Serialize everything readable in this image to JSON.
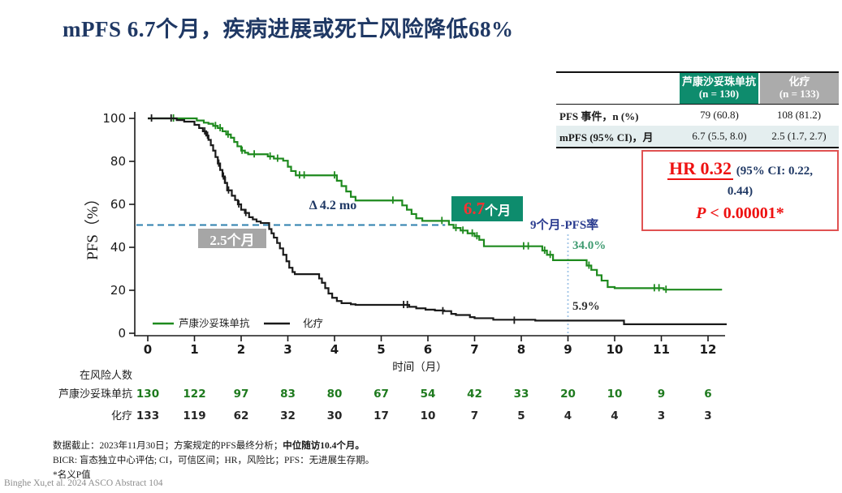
{
  "title": "mPFS 6.7个月，疾病进展或死亡风险降低68%",
  "colors": {
    "title_navy": "#1F3864",
    "sac_green": "#1E8A1E",
    "chemo_black": "#1A1A1A",
    "teal_header": "#0E8C6D",
    "gray_header": "#ABABAB",
    "light_row": "#E4EEEF",
    "red_accent": "#EE1111",
    "median_dash_blue": "#2E7FAE",
    "vline_light_blue": "#9DC3E6",
    "pfs9_green_text": "#3F9B71"
  },
  "summary_table": {
    "col_headers": [
      {
        "label": "芦康沙妥珠单抗",
        "n": "(n = 130)",
        "bg": "#0E8C6D"
      },
      {
        "label": "化疗",
        "n": "(n = 133)",
        "bg": "#ABABAB"
      }
    ],
    "rows": [
      {
        "label": "PFS 事件，n (%)",
        "values": [
          "79 (60.8)",
          "108 (81.2)"
        ],
        "bg": "#FFFFFF"
      },
      {
        "label": "mPFS (95% CI)，月",
        "values": [
          "6.7 (5.5, 8.0)",
          "2.5 (1.7, 2.7)"
        ],
        "bg": "#E4EEEF"
      }
    ]
  },
  "hr_box": {
    "hr": "HR 0.32",
    "ci_part1": " (95% CI: 0.22,",
    "ci_part2": "0.44)",
    "p_italic": "P",
    "p_rest": " < 0.00001*"
  },
  "annotations": {
    "delta": "Δ 4.2 mo",
    "median_chemo": "2.5个月",
    "median_sac_num": "6.7",
    "median_sac_unit": "个月",
    "pfs9_label": "9个月-PFS率",
    "pfs9_green": "34.0%",
    "pfs9_black": "5.9%"
  },
  "chart_data": {
    "type": "line",
    "subtype": "kaplan-meier-step",
    "xlabel": "时间（月）",
    "ylabel": "PFS（%）",
    "xlim": [
      0,
      12.4
    ],
    "ylim": [
      0,
      100
    ],
    "x_ticks": [
      0,
      1,
      2,
      3,
      4,
      5,
      6,
      7,
      8,
      9,
      10,
      11,
      12
    ],
    "y_ticks": [
      0,
      20,
      40,
      60,
      80,
      100
    ],
    "grid": false,
    "legend_position": "inside-bottom-left",
    "legend": [
      {
        "name": "芦康沙妥珠单抗",
        "color": "#1E8A1E"
      },
      {
        "name": "化疗",
        "color": "#1A1A1A"
      }
    ],
    "reference_lines": {
      "median_pct": 50.4,
      "median_x_start": 0.0,
      "median_x_end": 6.37,
      "vline_x": 9,
      "pfs_9mo_sac": 34.0,
      "pfs_9mo_chemo": 5.9
    },
    "series": [
      {
        "name": "芦康沙妥珠单抗",
        "color": "#1E8A1E",
        "median_months": 6.7,
        "step_points": [
          [
            0,
            100
          ],
          [
            1.0,
            100
          ],
          [
            1.05,
            99
          ],
          [
            1.2,
            98
          ],
          [
            1.3,
            97.5
          ],
          [
            1.4,
            96.5
          ],
          [
            1.5,
            95.5
          ],
          [
            1.6,
            94
          ],
          [
            1.68,
            92.5
          ],
          [
            1.78,
            91
          ],
          [
            1.85,
            89
          ],
          [
            1.92,
            87
          ],
          [
            2.0,
            85
          ],
          [
            2.08,
            84
          ],
          [
            2.15,
            83.3
          ],
          [
            2.5,
            83.3
          ],
          [
            2.57,
            82.3
          ],
          [
            2.7,
            81.3
          ],
          [
            2.9,
            80.3
          ],
          [
            3.0,
            77.5
          ],
          [
            3.07,
            75.5
          ],
          [
            3.17,
            73.5
          ],
          [
            3.95,
            73.5
          ],
          [
            4.05,
            71
          ],
          [
            4.15,
            68.5
          ],
          [
            4.25,
            66
          ],
          [
            4.35,
            63.5
          ],
          [
            4.45,
            61.8
          ],
          [
            5.35,
            61.8
          ],
          [
            5.45,
            59.5
          ],
          [
            5.55,
            57.5
          ],
          [
            5.65,
            55.5
          ],
          [
            5.75,
            53.5
          ],
          [
            5.88,
            52.3
          ],
          [
            6.35,
            52.3
          ],
          [
            6.45,
            50.5
          ],
          [
            6.55,
            49
          ],
          [
            6.7,
            47.8
          ],
          [
            6.85,
            46.5
          ],
          [
            7.0,
            45.2
          ],
          [
            7.1,
            43.5
          ],
          [
            7.2,
            40.5
          ],
          [
            8.35,
            40.5
          ],
          [
            8.45,
            38.5
          ],
          [
            8.55,
            36.5
          ],
          [
            8.68,
            34
          ],
          [
            9.3,
            34
          ],
          [
            9.4,
            31.5
          ],
          [
            9.5,
            29.5
          ],
          [
            9.62,
            27
          ],
          [
            9.72,
            24.5
          ],
          [
            9.85,
            21.5
          ],
          [
            10.0,
            21
          ],
          [
            10.95,
            21
          ],
          [
            11.05,
            20.3
          ],
          [
            12.3,
            20.3
          ]
        ],
        "censors": [
          [
            0.55,
            100
          ],
          [
            1.45,
            96.5
          ],
          [
            1.55,
            95.5
          ],
          [
            1.72,
            92.5
          ],
          [
            2.02,
            85
          ],
          [
            2.28,
            83.3
          ],
          [
            2.62,
            82.3
          ],
          [
            2.78,
            81.3
          ],
          [
            3.25,
            73.5
          ],
          [
            3.35,
            73.5
          ],
          [
            4.0,
            73.5
          ],
          [
            5.25,
            61.8
          ],
          [
            6.3,
            52.3
          ],
          [
            6.6,
            49
          ],
          [
            6.75,
            47.8
          ],
          [
            6.95,
            46.5
          ],
          [
            7.05,
            45.2
          ],
          [
            8.05,
            40.5
          ],
          [
            8.15,
            40.5
          ],
          [
            8.5,
            38.5
          ],
          [
            8.62,
            36.5
          ],
          [
            9.45,
            31.5
          ],
          [
            10.85,
            21
          ],
          [
            10.95,
            21
          ],
          [
            11.1,
            20.3
          ]
        ]
      },
      {
        "name": "化疗",
        "color": "#1A1A1A",
        "median_months": 2.5,
        "step_points": [
          [
            0,
            100
          ],
          [
            0.55,
            100
          ],
          [
            0.62,
            99.2
          ],
          [
            0.78,
            98.5
          ],
          [
            0.95,
            98.5
          ],
          [
            1.0,
            97
          ],
          [
            1.1,
            95.5
          ],
          [
            1.18,
            94
          ],
          [
            1.25,
            92
          ],
          [
            1.3,
            90
          ],
          [
            1.35,
            87.5
          ],
          [
            1.4,
            85
          ],
          [
            1.45,
            82
          ],
          [
            1.5,
            79
          ],
          [
            1.55,
            76
          ],
          [
            1.6,
            73
          ],
          [
            1.65,
            70
          ],
          [
            1.7,
            66.5
          ],
          [
            1.8,
            64
          ],
          [
            1.87,
            62
          ],
          [
            1.93,
            60
          ],
          [
            2.0,
            57.5
          ],
          [
            2.08,
            56
          ],
          [
            2.17,
            54
          ],
          [
            2.25,
            53
          ],
          [
            2.33,
            52
          ],
          [
            2.42,
            51.3
          ],
          [
            2.55,
            51.3
          ],
          [
            2.6,
            48.5
          ],
          [
            2.65,
            46.5
          ],
          [
            2.7,
            44.5
          ],
          [
            2.77,
            42
          ],
          [
            2.83,
            39.5
          ],
          [
            2.9,
            36.5
          ],
          [
            2.97,
            33.5
          ],
          [
            3.03,
            30.5
          ],
          [
            3.1,
            28.5
          ],
          [
            3.15,
            27.5
          ],
          [
            3.6,
            27.5
          ],
          [
            3.67,
            25.5
          ],
          [
            3.73,
            23.5
          ],
          [
            3.8,
            21
          ],
          [
            3.87,
            18.5
          ],
          [
            3.95,
            16.5
          ],
          [
            4.05,
            15
          ],
          [
            4.15,
            14
          ],
          [
            4.35,
            13.5
          ],
          [
            4.45,
            13.2
          ],
          [
            5.5,
            13.2
          ],
          [
            5.6,
            12.3
          ],
          [
            5.75,
            11.6
          ],
          [
            5.95,
            11
          ],
          [
            6.15,
            10.6
          ],
          [
            6.35,
            10.3
          ],
          [
            6.5,
            9
          ],
          [
            6.6,
            8.5
          ],
          [
            6.9,
            7.5
          ],
          [
            7.0,
            7
          ],
          [
            7.4,
            6.3
          ],
          [
            8.3,
            5.9
          ],
          [
            10.1,
            5.9
          ],
          [
            10.2,
            4.2
          ],
          [
            12.4,
            4.2
          ]
        ],
        "censors": [
          [
            0.08,
            100
          ],
          [
            0.5,
            100
          ],
          [
            1.22,
            94
          ],
          [
            1.28,
            92
          ],
          [
            1.52,
            79
          ],
          [
            1.62,
            73
          ],
          [
            1.66,
            71
          ],
          [
            1.73,
            66.5
          ],
          [
            1.95,
            60
          ],
          [
            2.1,
            56
          ],
          [
            5.48,
            13.2
          ],
          [
            5.56,
            13.2
          ],
          [
            6.32,
            10.3
          ],
          [
            7.85,
            5.9
          ]
        ]
      }
    ]
  },
  "risk_table": {
    "title": "在风险人数",
    "rows": [
      {
        "label": "芦康沙妥珠单抗",
        "color": "#1E7A1E",
        "values": [
          "130",
          "122",
          "97",
          "83",
          "80",
          "67",
          "54",
          "42",
          "33",
          "20",
          "10",
          "9",
          "6"
        ]
      },
      {
        "label": "化疗",
        "color": "#262626",
        "values": [
          "133",
          "119",
          "62",
          "32",
          "30",
          "17",
          "10",
          "7",
          "5",
          "4",
          "4",
          "3",
          "3"
        ]
      }
    ]
  },
  "footnotes": {
    "line1_normal": "数据截止：2023年11月30日；方案规定的PFS最终分析；",
    "line1_bold": "中位随访10.4个月。",
    "line2": "BICR: 盲态独立中心评估; CI，可信区间；HR，风险比；PFS：无进展生存期。",
    "line3": "*名义P值"
  },
  "citation": "Binghe Xu,et al. 2024 ASCO Abstract 104"
}
